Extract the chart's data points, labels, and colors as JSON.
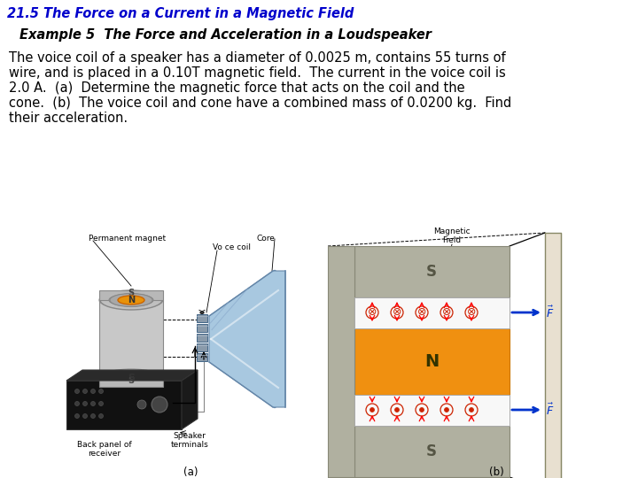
{
  "title_text": "21.5 The Force on a Current in a Magnetic Field",
  "title_color": "#0000CC",
  "title_fontsize": 10.5,
  "example_heading": "Example 5  The Force and Acceleration in a Loudspeaker",
  "example_fontsize": 10.5,
  "body_lines": [
    "The voice coil of a speaker has a diameter of 0.0025 m, contains 55 turns of",
    "wire, and is placed in a 0.10T magnetic field.  The current in the voice coil is",
    "2.0 A.  (a)  Determine the magnetic force that acts on the coil and the",
    "cone.  (b)  The voice coil and cone have a combined mass of 0.0200 kg.  Find",
    "their acceleration."
  ],
  "body_fontsize": 10.5,
  "background_color": "#ffffff",
  "label_a": "(a)",
  "label_b": "(b)"
}
